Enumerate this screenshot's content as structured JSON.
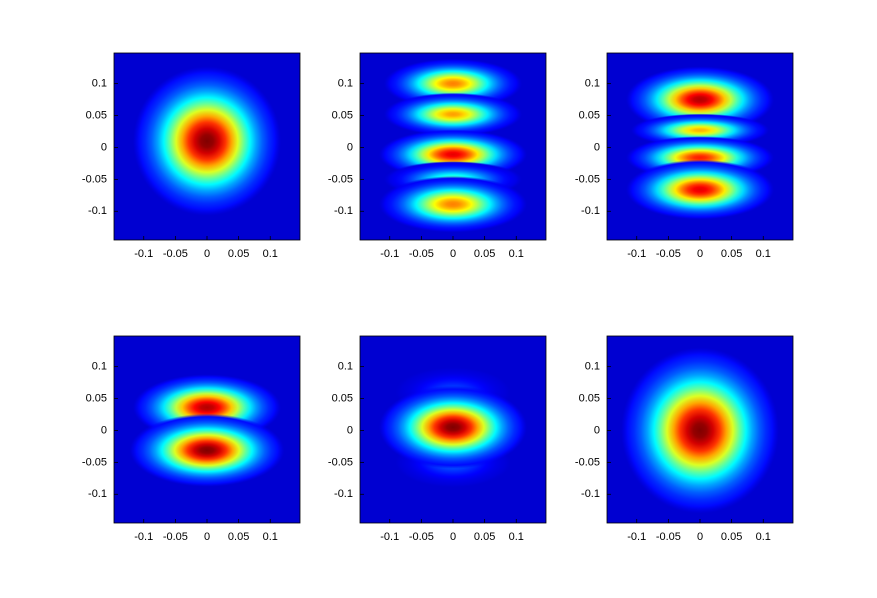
{
  "chart_data": [
    {
      "type": "heatmap",
      "colormap": "jet",
      "background": 0.08,
      "xlim": [
        -0.147,
        0.147
      ],
      "ylim": [
        -0.145,
        0.148
      ],
      "xticks": [
        -0.1,
        -0.05,
        0,
        0.05,
        0.1
      ],
      "yticks": [
        0.1,
        0.05,
        0,
        -0.05,
        -0.1
      ],
      "blobs": [
        {
          "x": 0,
          "y": 0.01,
          "sx": 0.045,
          "sy": 0.045,
          "peak": 1
        }
      ]
    },
    {
      "type": "heatmap",
      "colormap": "jet",
      "background": 0.08,
      "xlim": [
        -0.147,
        0.147
      ],
      "ylim": [
        -0.145,
        0.148
      ],
      "xticks": [
        -0.1,
        -0.05,
        0,
        0.05,
        0.1
      ],
      "yticks": [
        0.1,
        0.05,
        0,
        -0.05,
        -0.1
      ],
      "blobs": [
        {
          "x": 0,
          "y": 0.1,
          "sx": 0.042,
          "sy": 0.015,
          "peak": 0.75
        },
        {
          "x": 0,
          "y": 0.052,
          "sx": 0.042,
          "sy": 0.013,
          "peak": 0.72
        },
        {
          "x": 0,
          "y": -0.011,
          "sx": 0.045,
          "sy": 0.015,
          "peak": 0.9
        },
        {
          "x": 0,
          "y": -0.05,
          "sx": 0.042,
          "sy": 0.011,
          "peak": 0.45
        },
        {
          "x": 0,
          "y": -0.089,
          "sx": 0.045,
          "sy": 0.017,
          "peak": 0.75
        }
      ]
    },
    {
      "type": "heatmap",
      "colormap": "jet",
      "background": 0.08,
      "xlim": [
        -0.147,
        0.147
      ],
      "ylim": [
        -0.145,
        0.148
      ],
      "xticks": [
        -0.1,
        -0.05,
        0,
        0.05,
        0.1
      ],
      "yticks": [
        0.1,
        0.05,
        0,
        -0.05,
        -0.1
      ],
      "blobs": [
        {
          "x": 0,
          "y": 0.075,
          "sx": 0.045,
          "sy": 0.02,
          "peak": 0.95
        },
        {
          "x": 0,
          "y": 0.027,
          "sx": 0.042,
          "sy": 0.01,
          "peak": 0.7
        },
        {
          "x": 0,
          "y": -0.016,
          "sx": 0.045,
          "sy": 0.013,
          "peak": 0.85
        },
        {
          "x": 0,
          "y": -0.066,
          "sx": 0.045,
          "sy": 0.018,
          "peak": 0.9
        }
      ]
    },
    {
      "type": "heatmap",
      "colormap": "jet",
      "background": 0.08,
      "xlim": [
        -0.147,
        0.147
      ],
      "ylim": [
        -0.145,
        0.148
      ],
      "xticks": [
        -0.1,
        -0.05,
        0,
        0.05,
        0.1
      ],
      "yticks": [
        0.1,
        0.05,
        0,
        -0.05,
        -0.1
      ],
      "blobs": [
        {
          "x": 0,
          "y": 0.036,
          "sx": 0.045,
          "sy": 0.02,
          "peak": 0.95
        },
        {
          "x": 0,
          "y": -0.031,
          "sx": 0.047,
          "sy": 0.022,
          "peak": 1
        }
      ]
    },
    {
      "type": "heatmap",
      "colormap": "jet",
      "background": 0.08,
      "xlim": [
        -0.147,
        0.147
      ],
      "ylim": [
        -0.145,
        0.148
      ],
      "xticks": [
        -0.1,
        -0.05,
        0,
        0.05,
        0.1
      ],
      "yticks": [
        0.1,
        0.05,
        0,
        -0.05,
        -0.1
      ],
      "blobs": [
        {
          "x": 0,
          "y": 0.06,
          "sx": 0.035,
          "sy": 0.015,
          "peak": 0.2
        },
        {
          "x": 0,
          "y": -0.05,
          "sx": 0.035,
          "sy": 0.015,
          "peak": 0.22
        },
        {
          "x": 0,
          "y": 0.005,
          "sx": 0.045,
          "sy": 0.025,
          "peak": 1
        }
      ]
    },
    {
      "type": "heatmap",
      "colormap": "jet",
      "background": 0.08,
      "xlim": [
        -0.147,
        0.147
      ],
      "ylim": [
        -0.145,
        0.148
      ],
      "xticks": [
        -0.1,
        -0.05,
        0,
        0.05,
        0.1
      ],
      "yticks": [
        0.1,
        0.05,
        0,
        -0.05,
        -0.1
      ],
      "blobs": [
        {
          "x": 0,
          "y": 0,
          "sx": 0.048,
          "sy": 0.05,
          "peak": 1
        }
      ]
    }
  ]
}
